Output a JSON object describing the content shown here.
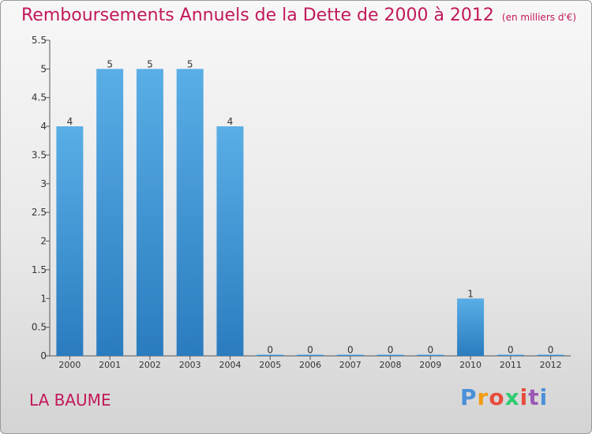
{
  "title": "Remboursements Annuels de la Dette de 2000 à 2012",
  "unit_note": "(en milliers d'€)",
  "commune": "LA BAUME",
  "logo": {
    "letters": [
      "P",
      "r",
      "o",
      "x",
      "i",
      "t",
      "i"
    ],
    "colors": [
      "#4a90d9",
      "#f39c12",
      "#e74c3c",
      "#2ecc71",
      "#e74c3c",
      "#9b59b6",
      "#4a90d9"
    ]
  },
  "chart_data": {
    "type": "bar",
    "categories": [
      "2000",
      "2001",
      "2002",
      "2003",
      "2004",
      "2005",
      "2006",
      "2007",
      "2008",
      "2009",
      "2010",
      "2011",
      "2012"
    ],
    "values": [
      4,
      5,
      5,
      5,
      4,
      0,
      0,
      0,
      0,
      0,
      1,
      0,
      0
    ],
    "data_labels": [
      "4",
      "5",
      "5",
      "5",
      "4",
      "0",
      "0",
      "0",
      "0",
      "0",
      "1",
      "0",
      "0"
    ],
    "ylim": [
      0,
      5.5
    ],
    "yticks": [
      0,
      0.5,
      1,
      1.5,
      2,
      2.5,
      3,
      3.5,
      4,
      4.5,
      5,
      5.5
    ],
    "ytick_labels": [
      "0",
      "0.5",
      "1",
      "1.5",
      "2",
      "2.5",
      "3",
      "3.5",
      "4",
      "4.5",
      "5",
      "5.5"
    ],
    "grid": false,
    "colors": {
      "bar_light": "#5aaee6",
      "bar_dark": "#2a7cbf",
      "text": "#c2185b",
      "axis": "#555555"
    }
  }
}
